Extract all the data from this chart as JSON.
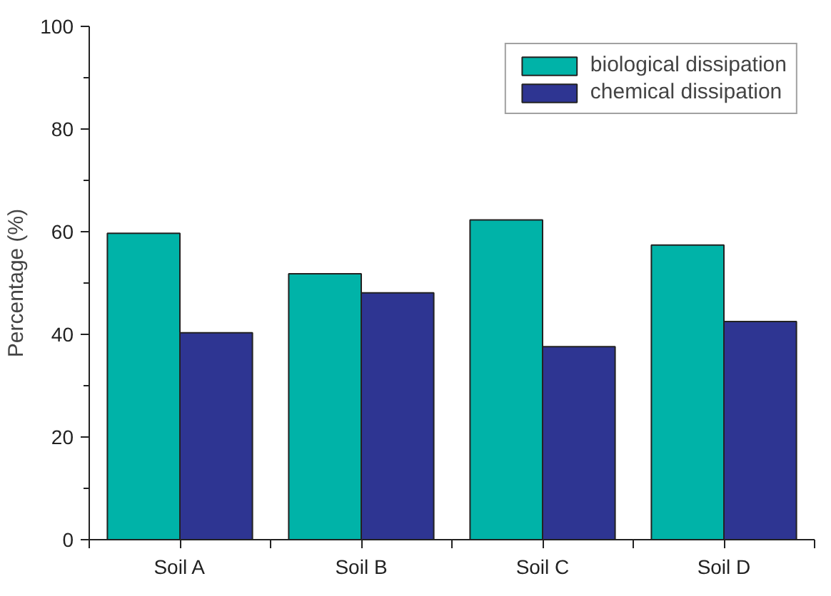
{
  "chart_data": {
    "type": "bar",
    "ylabel": "Percentage (%)",
    "categories": [
      "Soil A",
      "Soil B",
      "Soil C",
      "Soil D"
    ],
    "series": [
      {
        "name": "biological dissipation",
        "color": "#00b3a8",
        "values": [
          59.7,
          51.8,
          62.3,
          57.4
        ]
      },
      {
        "name": "chemical dissipation",
        "color": "#2e3592",
        "values": [
          40.3,
          48.1,
          37.6,
          42.5
        ]
      }
    ],
    "ylim": [
      0,
      100
    ],
    "yticks": [
      0,
      {
        "value": 10,
        "label": null
      },
      20,
      {
        "value": 30,
        "label": null
      },
      40,
      {
        "value": 50,
        "label": null
      },
      60,
      {
        "value": 70,
        "label": null
      },
      80,
      {
        "value": 90,
        "label": null
      },
      100
    ],
    "grid": false,
    "legend": "top right"
  }
}
